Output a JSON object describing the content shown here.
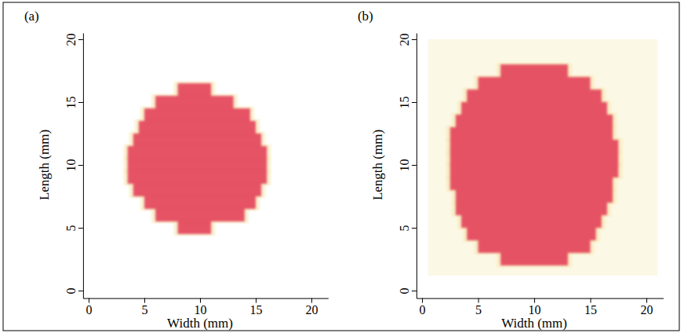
{
  "chart_data": [
    {
      "type": "image",
      "panel": "(a)",
      "x_label": "Width (mm)",
      "y_label": "Length (mm)",
      "xlim": [
        -0.5,
        21.5
      ],
      "ylim": [
        -0.6,
        20.5
      ],
      "xticks": [
        0,
        5,
        10,
        15,
        20
      ],
      "yticks": [
        0,
        5,
        10,
        15,
        20
      ],
      "color": "#e4455c",
      "rows": {
        "y": [
          16,
          15,
          14,
          13,
          12,
          11,
          10,
          9,
          8,
          7,
          6,
          5
        ],
        "x_start": [
          8,
          6,
          5,
          4.5,
          4,
          3.5,
          3.5,
          3.5,
          4,
          5,
          6,
          8
        ],
        "x_end": [
          11,
          13,
          14.5,
          15,
          15.5,
          16,
          16,
          16,
          15.5,
          15,
          14,
          11
        ]
      }
    },
    {
      "type": "image",
      "panel": "(b)",
      "x_label": "Width (mm)",
      "y_label": "Length (mm)",
      "xlim": [
        -0.5,
        21.5
      ],
      "ylim": [
        -0.6,
        20.5
      ],
      "xticks": [
        0,
        5,
        10,
        15,
        20
      ],
      "yticks": [
        0,
        5,
        10,
        15,
        20
      ],
      "color": "#e4455c",
      "rows": {
        "y": [
          17.5,
          16.5,
          15.5,
          14.5,
          13.5,
          12.5,
          11.5,
          10.5,
          9.5,
          8.5,
          7.5,
          6.5,
          5.5,
          4.5,
          3.5,
          2.5
        ],
        "x_start": [
          7,
          5,
          4,
          3.5,
          3,
          2.5,
          2.5,
          2.5,
          2.5,
          2.5,
          3,
          3,
          3.5,
          4,
          5,
          7
        ],
        "x_end": [
          13,
          15,
          16,
          16.5,
          17,
          17,
          17.5,
          17.5,
          17.5,
          17,
          17,
          16.5,
          16,
          15.5,
          15,
          13
        ]
      }
    }
  ]
}
